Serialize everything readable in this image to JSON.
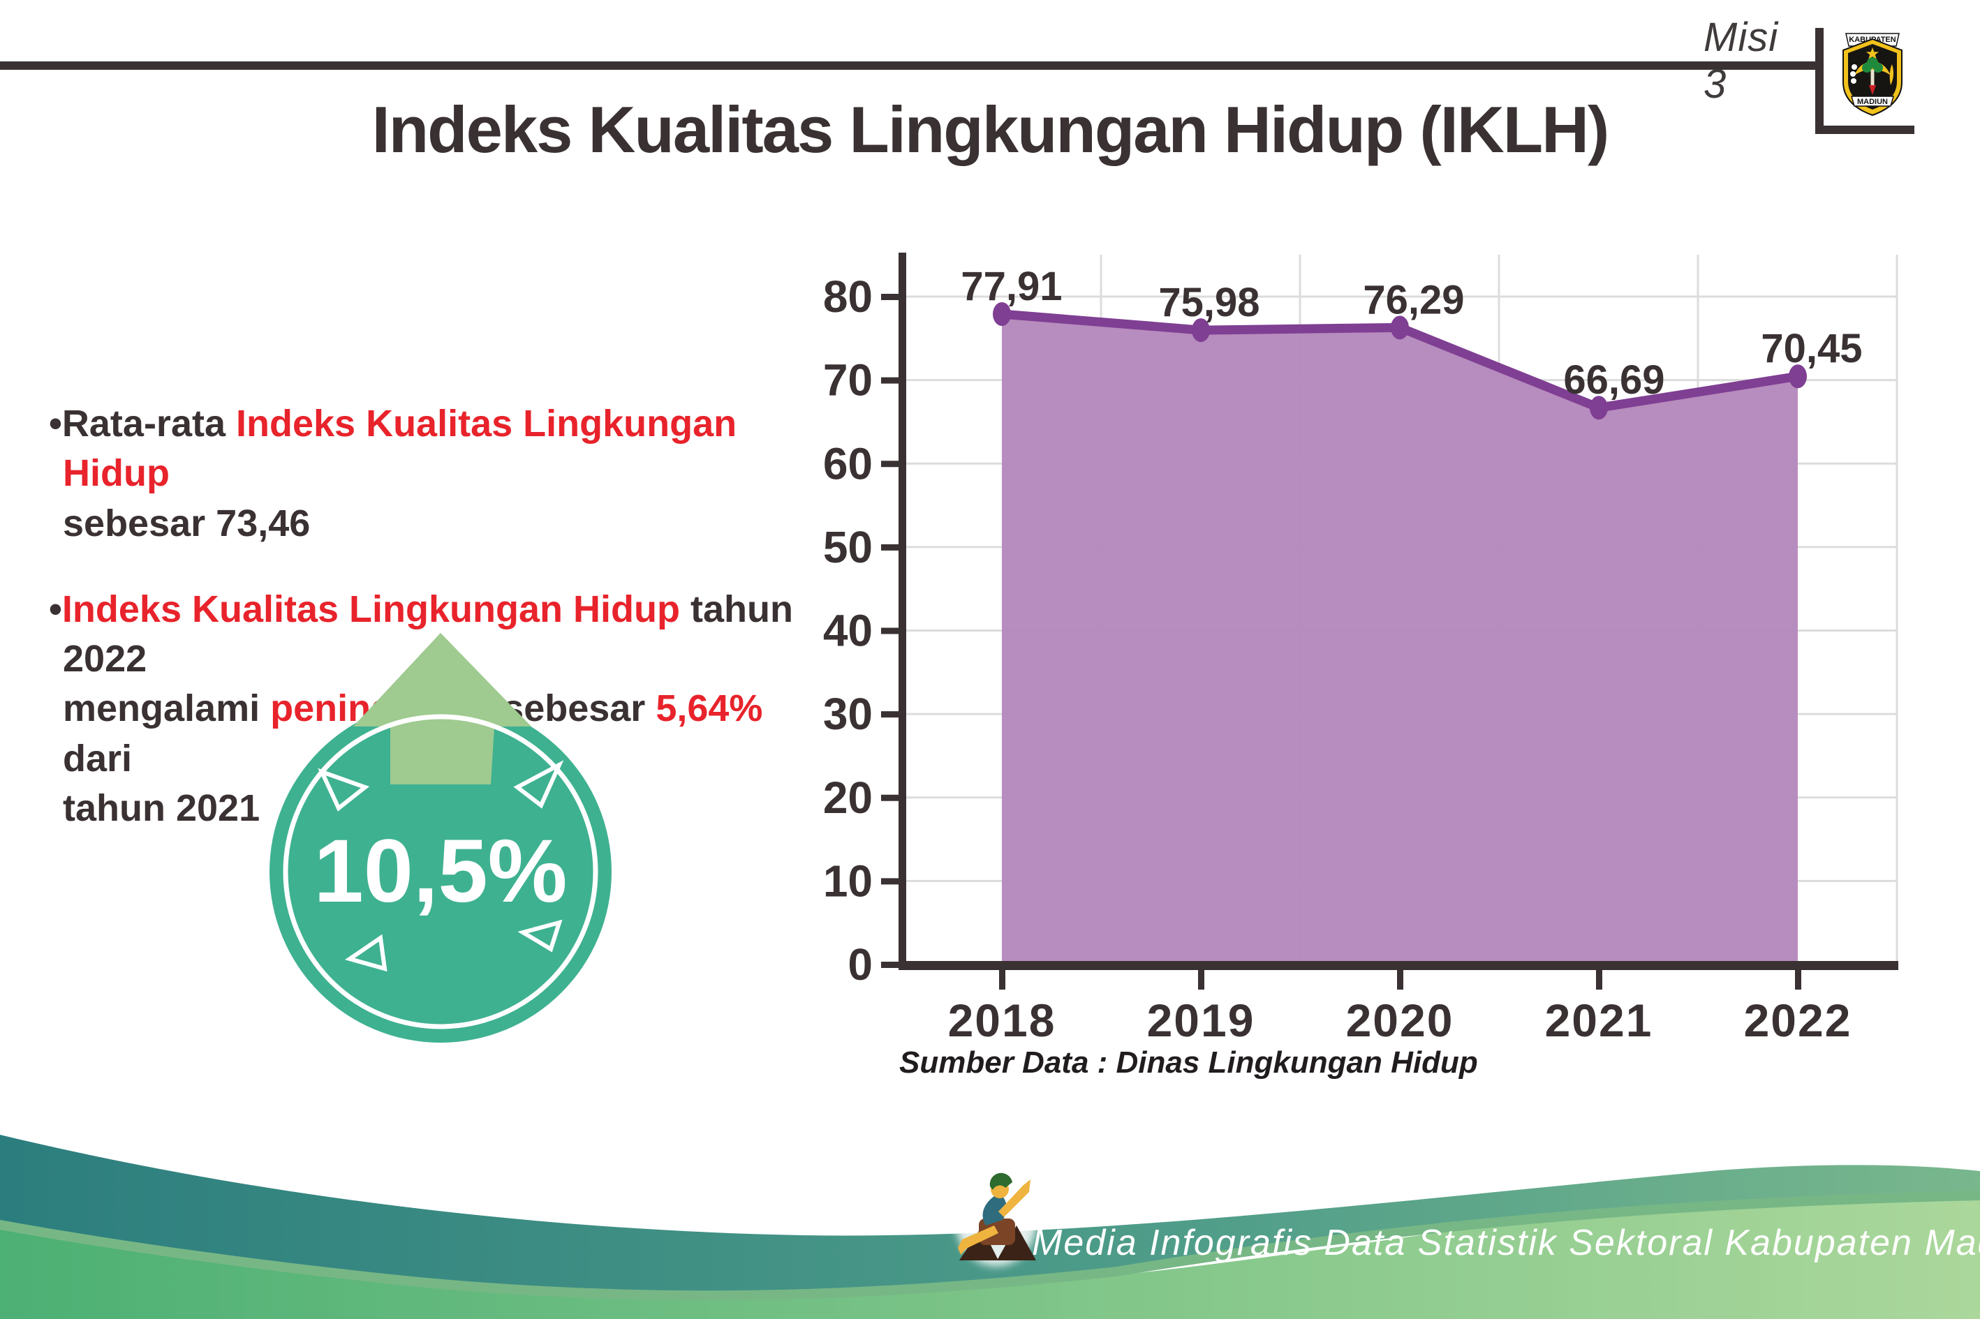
{
  "header": {
    "misi": "Misi 3",
    "title": "Indeks Kualitas Lingkungan Hidup (IKLH)",
    "logo": {
      "top_banner": "KABUPATEN",
      "bottom_banner": "MADIUN"
    }
  },
  "bullets": [
    {
      "segments": [
        {
          "text": "•Rata-rata ",
          "color": "dark"
        },
        {
          "text": "Indeks Kualitas Lingkungan Hidup",
          "color": "red"
        },
        {
          "text": "\nsebesar 73,46",
          "color": "dark"
        }
      ]
    },
    {
      "segments": [
        {
          "text": "•",
          "color": "dark"
        },
        {
          "text": "Indeks Kualitas Lingkungan Hidup",
          "color": "red"
        },
        {
          "text": " tahun 2022\nmengalami ",
          "color": "dark"
        },
        {
          "text": "peningkatan",
          "color": "red"
        },
        {
          "text": " sebesar ",
          "color": "dark"
        },
        {
          "text": "5,64%",
          "color": "red"
        },
        {
          "text": " dari\ntahun 2021",
          "color": "dark"
        }
      ]
    }
  ],
  "badge": {
    "value": "10,5%"
  },
  "chart_data": {
    "type": "area",
    "categories": [
      "2018",
      "2019",
      "2020",
      "2021",
      "2022"
    ],
    "values": [
      77.91,
      75.98,
      76.29,
      66.69,
      70.45
    ],
    "point_labels": [
      "77,91",
      "75,98",
      "76,29",
      "66,69",
      "70,45"
    ],
    "title": "",
    "xlabel": "",
    "ylabel": "",
    "ylim": [
      0,
      80
    ],
    "ytick_step": 10,
    "grid": true,
    "legend": false
  },
  "source": "Sumber Data : Dinas Lingkungan Hidup",
  "footer": {
    "text": "Media Infografis Data Statistik Sektoral Kabupaten Madiun |"
  },
  "colors": {
    "dark_text": "#3a3132",
    "red_text": "#e8232b",
    "line": "#7f3f93",
    "fill": "#b487bb",
    "gridline": "#dcdcdc",
    "badge_circle": "#3eb191",
    "badge_arrow": "#9fca90",
    "badge_arrow_outline": "#273a60",
    "footer_teal_left": "#2c7e7e",
    "footer_teal_right": "#79b78d",
    "footer_green_left": "#4db074",
    "footer_green_right": "#abd79b"
  }
}
